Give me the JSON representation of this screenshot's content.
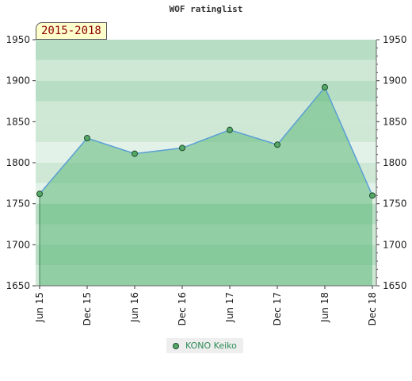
{
  "chart_data": {
    "type": "area",
    "title": "WOF ratinglist",
    "period_label": "2015-2018",
    "categories": [
      "Jun 15",
      "Dec 15",
      "Jun 16",
      "Dec 16",
      "Jun 17",
      "Dec 17",
      "Jun 18",
      "Dec 18"
    ],
    "series": [
      {
        "name": "KONO Keiko",
        "values": [
          1762,
          1830,
          1811,
          1818,
          1840,
          1822,
          1892,
          1760
        ]
      }
    ],
    "ylim": [
      1650,
      1950
    ],
    "yticks": [
      1650,
      1700,
      1750,
      1800,
      1850,
      1900,
      1950
    ],
    "ytick_labels": [
      "1650",
      "1700",
      "1750",
      "1800",
      "1850",
      "1900",
      "1950"
    ],
    "grid": true,
    "legend_position": "bottom",
    "colors": {
      "line": "#5a9fd4",
      "fill": "#5fb87a",
      "marker": "#55a868",
      "band_dark": "#b4dcc0",
      "band_light": "#cfe8d6",
      "legend_text": "#2e8b57"
    }
  }
}
